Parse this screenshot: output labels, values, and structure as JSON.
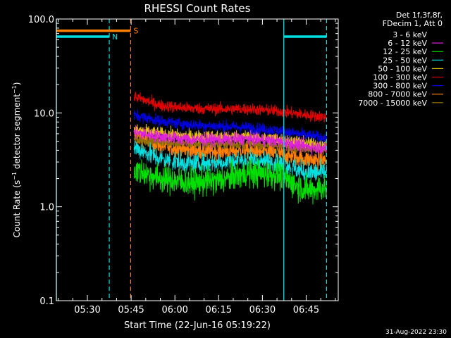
{
  "chart_data": {
    "type": "line",
    "title": "RHESSI Count Rates",
    "xlabel": "Start Time (22-Jun-16 05:19:22)",
    "ylabel": "Count Rate (s⁻¹ detector segment⁻¹)",
    "ylabel_parts": [
      "Count Rate (s",
      "−1",
      " detector segment",
      "−1",
      ")"
    ],
    "y_scale": "log",
    "xlim": [
      "05:19:22",
      "06:56:00"
    ],
    "ylim": [
      0.1,
      100.0
    ],
    "x_ticks": [
      "05:30",
      "05:45",
      "06:00",
      "06:15",
      "06:30",
      "06:45"
    ],
    "y_ticks": [
      "0.1",
      "1.0",
      "10.0",
      "100.0"
    ],
    "y_tick_values": [
      0.1,
      1.0,
      10.0,
      100.0
    ],
    "legend_position": "top-right",
    "legend_header": [
      "Det 1f,3f,8f,",
      "FDecim 1, Att 0"
    ],
    "data_start": "05:46:00",
    "series": [
      {
        "name": "3 - 6 keV",
        "color": "#000000",
        "x": [
          "05:46",
          "05:55",
          "06:05",
          "06:15",
          "06:25",
          "06:35",
          "06:45",
          "06:52"
        ],
        "values": [
          2.8,
          2.3,
          2.0,
          2.1,
          2.4,
          2.1,
          1.6,
          1.6
        ]
      },
      {
        "name": "6 - 12 keV",
        "color": "#e020e0",
        "x": [
          "05:46",
          "05:55",
          "06:05",
          "06:15",
          "06:25",
          "06:35",
          "06:45",
          "06:52"
        ],
        "values": [
          6.2,
          5.6,
          5.2,
          5.2,
          5.3,
          5.0,
          4.4,
          4.2
        ]
      },
      {
        "name": "12 - 25 keV",
        "color": "#00e000",
        "x": [
          "05:46",
          "05:55",
          "06:05",
          "06:15",
          "06:25",
          "06:35",
          "06:45",
          "06:52"
        ],
        "values": [
          2.5,
          2.0,
          1.8,
          1.9,
          2.3,
          2.2,
          1.5,
          1.6
        ]
      },
      {
        "name": "25 - 50 keV",
        "color": "#00e0e0",
        "x": [
          "05:46",
          "05:55",
          "06:05",
          "06:15",
          "06:25",
          "06:35",
          "06:45",
          "06:52"
        ],
        "values": [
          4.3,
          3.2,
          2.8,
          2.9,
          3.1,
          2.9,
          2.3,
          2.3
        ]
      },
      {
        "name": "50 - 100 keV",
        "color": "#e0c000",
        "x": [
          "05:46",
          "05:55",
          "06:05",
          "06:15",
          "06:25",
          "06:35",
          "06:45",
          "06:52"
        ],
        "values": [
          6.5,
          6.0,
          5.6,
          5.6,
          5.6,
          5.3,
          4.8,
          4.6
        ]
      },
      {
        "name": "100 - 300 keV",
        "color": "#e00000",
        "x": [
          "05:46",
          "05:55",
          "06:05",
          "06:15",
          "06:25",
          "06:35",
          "06:45",
          "06:52"
        ],
        "values": [
          15.0,
          12.0,
          11.2,
          11.0,
          11.0,
          10.5,
          9.5,
          9.0
        ]
      },
      {
        "name": "300 - 800 keV",
        "color": "#0000e0",
        "x": [
          "05:46",
          "05:55",
          "06:05",
          "06:15",
          "06:25",
          "06:35",
          "06:45",
          "06:52"
        ],
        "values": [
          9.5,
          8.2,
          7.5,
          7.2,
          7.0,
          6.5,
          5.8,
          5.4
        ]
      },
      {
        "name": "800 - 7000 keV",
        "color": "#ff8000",
        "x": [
          "05:46",
          "05:55",
          "06:05",
          "06:15",
          "06:25",
          "06:35",
          "06:45",
          "06:52"
        ],
        "values": [
          5.8,
          4.5,
          4.0,
          3.9,
          4.0,
          3.7,
          3.2,
          3.1
        ]
      },
      {
        "name": "7000 - 15000 keV",
        "color": "#907000",
        "x": [
          "05:46",
          "05:55",
          "06:05",
          "06:15",
          "06:25",
          "06:35",
          "06:45",
          "06:52"
        ],
        "values": [
          5.2,
          4.9,
          4.7,
          4.6,
          4.7,
          4.5,
          4.2,
          4.1
        ]
      }
    ],
    "markers": [
      {
        "label": "N",
        "color": "#00e0e0",
        "solid_at": "05:19:22",
        "dashed_at": "05:37:30",
        "bar_from": "05:19:22",
        "bar_to": "05:37:30",
        "bar_value": 65.0
      },
      {
        "label": "S",
        "color": "#ff8000",
        "dashed_at": "05:44:50",
        "bar_from": "05:19:22",
        "bar_to": "05:44:50",
        "bar_value": 75.0
      },
      {
        "color": "#00e0e0",
        "solid_at": "06:37:20",
        "dashed_at": "06:52:00",
        "bar_from": "06:37:20",
        "bar_to": "06:52:00",
        "bar_value": 65.0
      }
    ],
    "timestamp": "31-Aug-2022 23:30"
  }
}
